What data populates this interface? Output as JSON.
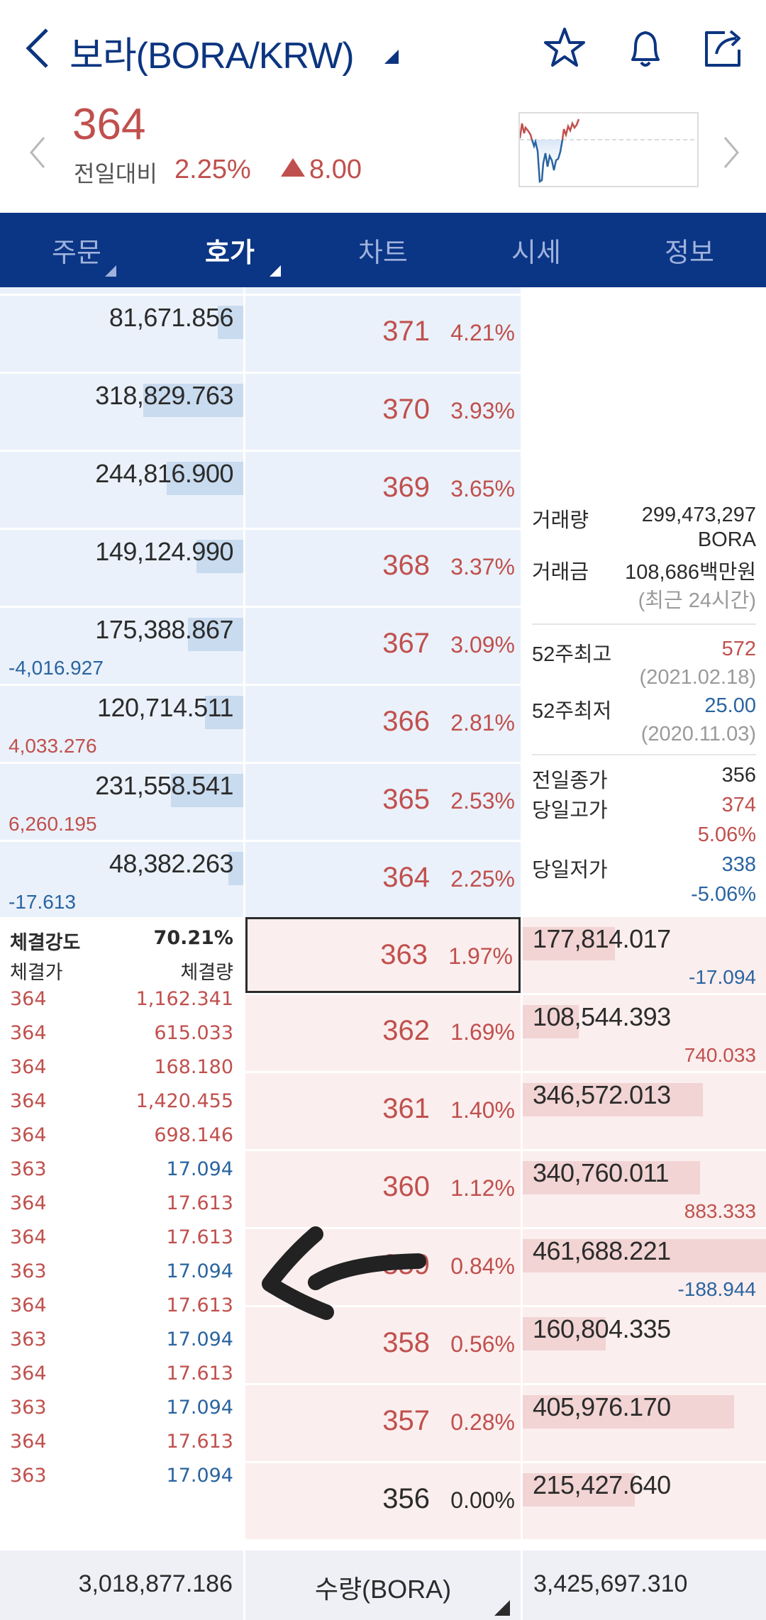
{
  "header": {
    "title": "보라(BORA/KRW)",
    "icons": [
      "back-icon",
      "star-icon",
      "bell-icon",
      "share-icon"
    ]
  },
  "price": {
    "current": "364",
    "change_label": "전일대비",
    "change_pct": "2.25%",
    "change_abs": "8.00",
    "change_direction": "up"
  },
  "tabs": [
    {
      "label": "주문",
      "active": false
    },
    {
      "label": "호가",
      "active": true
    },
    {
      "label": "차트",
      "active": false
    },
    {
      "label": "시세",
      "active": false
    },
    {
      "label": "정보",
      "active": false
    }
  ],
  "asks": [
    {
      "qty": "81,671.856",
      "price": "371",
      "pct": "4.21%",
      "change": "",
      "bar": 0.12
    },
    {
      "qty": "318,829.763",
      "price": "370",
      "pct": "3.93%",
      "change": "",
      "bar": 0.47
    },
    {
      "qty": "244,816.900",
      "price": "369",
      "pct": "3.65%",
      "change": "",
      "bar": 0.36
    },
    {
      "qty": "149,124.990",
      "price": "368",
      "pct": "3.37%",
      "change": "",
      "bar": 0.22
    },
    {
      "qty": "175,388.867",
      "price": "367",
      "pct": "3.09%",
      "change": "-4,016.927",
      "change_dir": "down",
      "bar": 0.26
    },
    {
      "qty": "120,714.511",
      "price": "366",
      "pct": "2.81%",
      "change": "4,033.276",
      "change_dir": "up",
      "bar": 0.18
    },
    {
      "qty": "231,558.541",
      "price": "365",
      "pct": "2.53%",
      "change": "6,260.195",
      "change_dir": "up",
      "bar": 0.34
    },
    {
      "qty": "48,382.263",
      "price": "364",
      "pct": "2.25%",
      "change": "-17.613",
      "change_dir": "down",
      "bar": 0.07
    }
  ],
  "bids": [
    {
      "qty": "177,814.017",
      "price": "363",
      "pct": "1.97%",
      "change": "-17.094",
      "change_dir": "down",
      "bar": 0.38,
      "current": true,
      "price_dir": "up"
    },
    {
      "qty": "108,544.393",
      "price": "362",
      "pct": "1.69%",
      "change": "740.033",
      "change_dir": "up",
      "bar": 0.23,
      "price_dir": "up"
    },
    {
      "qty": "346,572.013",
      "price": "361",
      "pct": "1.40%",
      "change": "",
      "bar": 0.74,
      "price_dir": "up"
    },
    {
      "qty": "340,760.011",
      "price": "360",
      "pct": "1.12%",
      "change": "883.333",
      "change_dir": "up",
      "bar": 0.73,
      "price_dir": "up"
    },
    {
      "qty": "461,688.221",
      "price": "359",
      "pct": "0.84%",
      "change": "-188.944",
      "change_dir": "down",
      "bar": 1.0,
      "price_dir": "up"
    },
    {
      "qty": "160,804.335",
      "price": "358",
      "pct": "0.56%",
      "change": "",
      "bar": 0.34,
      "price_dir": "up"
    },
    {
      "qty": "405,976.170",
      "price": "357",
      "pct": "0.28%",
      "change": "",
      "bar": 0.87,
      "price_dir": "up"
    },
    {
      "qty": "215,427.640",
      "price": "356",
      "pct": "0.00%",
      "change": "",
      "bar": 0.46,
      "price_dir": "flat"
    }
  ],
  "info": {
    "volume_label": "거래량",
    "volume_value": "299,473,297",
    "volume_unit": "BORA",
    "amount_label": "거래금",
    "amount_value": "108,686백만원",
    "period_note": "(최근 24시간)",
    "high52_label": "52주최고",
    "high52_value": "572",
    "high52_date": "(2021.02.18)",
    "low52_label": "52주최저",
    "low52_value": "25.00",
    "low52_date": "(2020.11.03)",
    "prev_close_label": "전일종가",
    "prev_close_value": "356",
    "day_high_label": "당일고가",
    "day_high_value": "374",
    "day_high_pct": "5.06%",
    "day_low_label": "당일저가",
    "day_low_value": "338",
    "day_low_pct": "-5.06%"
  },
  "strength": {
    "label": "체결강도",
    "value": "70.21%",
    "price_header": "체결가",
    "qty_header": "체결량",
    "trades": [
      {
        "price": "364",
        "qty": "1,162.341",
        "dir": "up"
      },
      {
        "price": "364",
        "qty": "615.033",
        "dir": "up"
      },
      {
        "price": "364",
        "qty": "168.180",
        "dir": "up"
      },
      {
        "price": "364",
        "qty": "1,420.455",
        "dir": "up"
      },
      {
        "price": "364",
        "qty": "698.146",
        "dir": "up"
      },
      {
        "price": "363",
        "qty": "17.094",
        "dir": "down"
      },
      {
        "price": "364",
        "qty": "17.613",
        "dir": "up"
      },
      {
        "price": "364",
        "qty": "17.613",
        "dir": "up"
      },
      {
        "price": "363",
        "qty": "17.094",
        "dir": "down"
      },
      {
        "price": "364",
        "qty": "17.613",
        "dir": "up"
      },
      {
        "price": "363",
        "qty": "17.094",
        "dir": "down"
      },
      {
        "price": "364",
        "qty": "17.613",
        "dir": "up"
      },
      {
        "price": "363",
        "qty": "17.094",
        "dir": "down"
      },
      {
        "price": "364",
        "qty": "17.613",
        "dir": "up"
      },
      {
        "price": "363",
        "qty": "17.094",
        "dir": "down"
      }
    ]
  },
  "footer": {
    "total_ask": "3,018,877.186",
    "unit_label": "수량(BORA)",
    "total_bid": "3,425,697.310"
  },
  "colors": {
    "brand": "#0b3585",
    "up": "#c0504d",
    "down": "#2a64a0",
    "ask_bg": "#eaf1fa",
    "bid_bg": "#fbeeee"
  }
}
